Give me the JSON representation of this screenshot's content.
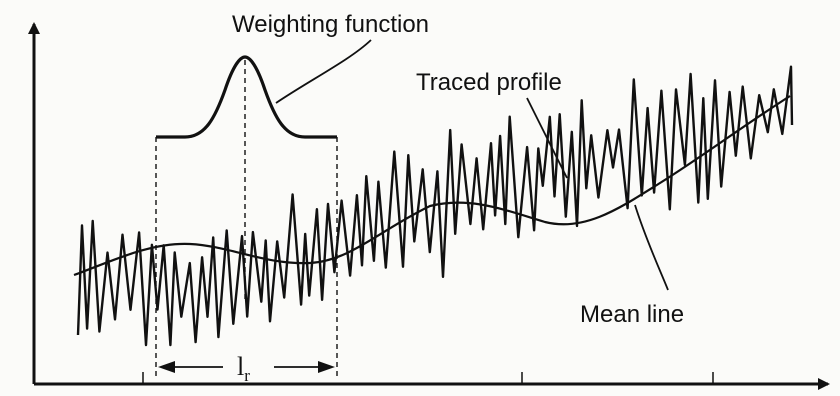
{
  "labels": {
    "weighting_function": "Weighting function",
    "traced_profile": "Traced profile",
    "mean_line": "Mean line",
    "sampling_length_base": "l",
    "sampling_length_sub": "r"
  },
  "colors": {
    "ink": "#111111",
    "paper": "#fbfbf9"
  }
}
